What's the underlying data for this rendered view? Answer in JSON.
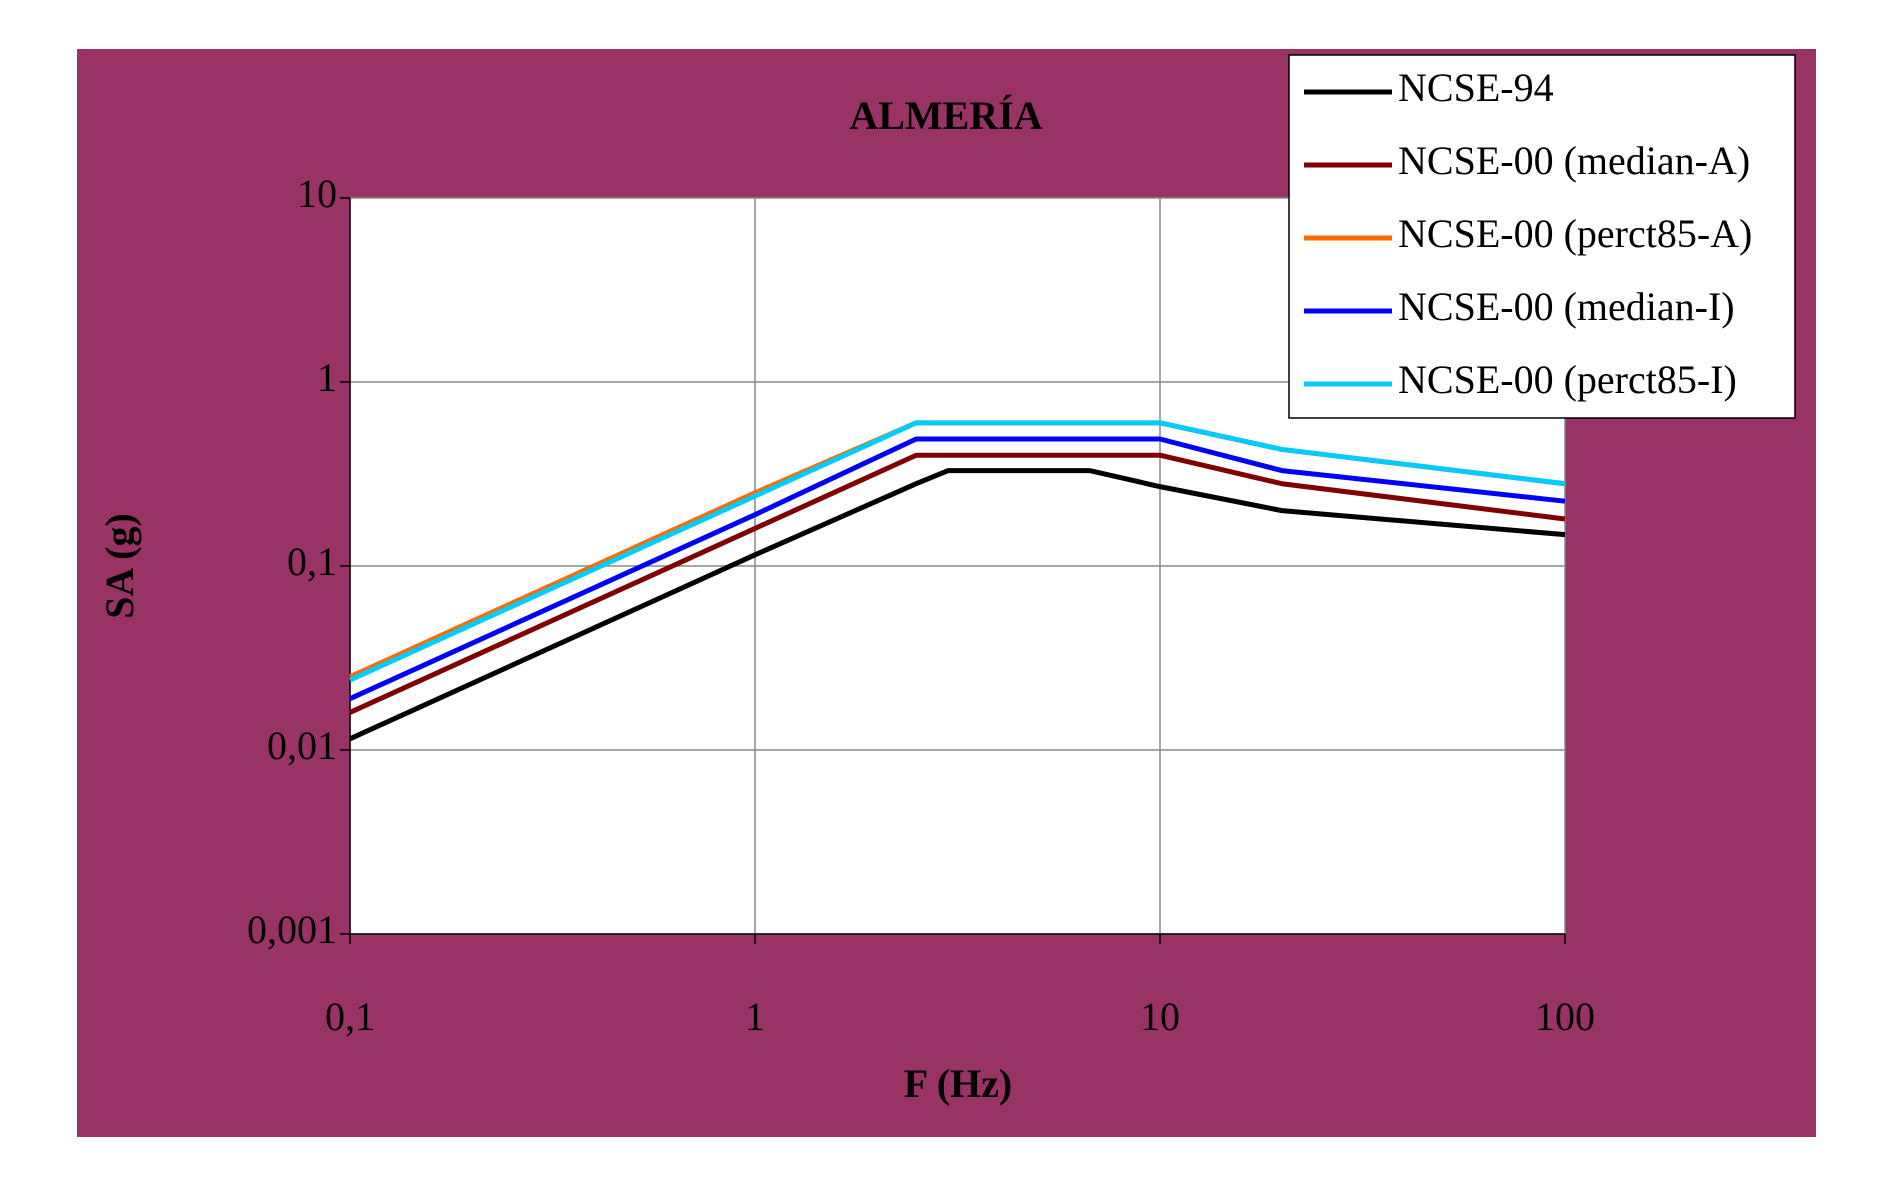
{
  "chart_data": {
    "type": "line",
    "title": "ALMERÍA",
    "xlabel": "F (Hz)",
    "ylabel": "SA (g)",
    "xscale": "log",
    "yscale": "log",
    "grid": true,
    "legend": "upper right",
    "x": [
      0.1,
      1,
      2.5,
      3,
      6.7,
      10,
      20,
      100
    ],
    "xlim": [
      0.1,
      100
    ],
    "xticks": [
      {
        "value": 0.1,
        "label": "0,1"
      },
      1,
      10,
      100
    ],
    "ylim": [
      0.001,
      10
    ],
    "yticks": [
      {
        "value": 0.001,
        "label": "0,001"
      },
      {
        "value": 0.01,
        "label": "0,01"
      },
      {
        "value": 0.1,
        "label": "0,1"
      },
      1,
      10
    ],
    "series": [
      {
        "name": "NCSE-94",
        "color": "#000000",
        "values": [
          0.0115,
          0.115,
          0.28,
          0.33,
          0.33,
          0.27,
          0.2,
          0.148
        ]
      },
      {
        "name": "NCSE-00 (median-A)",
        "color": "#800000",
        "values": [
          0.016,
          0.16,
          0.4,
          0.4,
          0.4,
          0.4,
          0.28,
          0.18
        ]
      },
      {
        "name": "NCSE-00 (perct85-A)",
        "color": "#ff6a00",
        "values": [
          0.025,
          0.25,
          0.6,
          0.6,
          0.6,
          0.6,
          0.43,
          0.28
        ]
      },
      {
        "name": "NCSE-00 (median-I)",
        "color": "#0000ff",
        "values": [
          0.019,
          0.19,
          0.49,
          0.49,
          0.49,
          0.49,
          0.33,
          0.225
        ]
      },
      {
        "name": "NCSE-00 (perct85-I)",
        "color": "#00ccff",
        "values": [
          0.024,
          0.24,
          0.6,
          0.6,
          0.6,
          0.6,
          0.43,
          0.28
        ]
      }
    ]
  }
}
